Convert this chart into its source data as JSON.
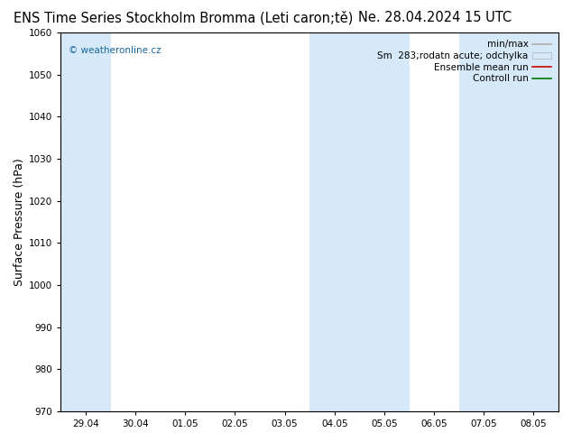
{
  "title_left": "ENS Time Series Stockholm Bromma (Leti caron;tě)",
  "title_right": "Ne. 28.04.2024 15 UTC",
  "ylabel": "Surface Pressure (hPa)",
  "ylim": [
    970,
    1060
  ],
  "yticks": [
    970,
    980,
    990,
    1000,
    1010,
    1020,
    1030,
    1040,
    1050,
    1060
  ],
  "xtick_labels": [
    "29.04",
    "30.04",
    "01.05",
    "02.05",
    "03.05",
    "04.05",
    "05.05",
    "06.05",
    "07.05",
    "08.05"
  ],
  "background_color": "#ffffff",
  "plot_bg_color": "#ffffff",
  "shade_color": "#d6e9f8",
  "shaded_bands_data": [
    {
      "start": 0,
      "end": 1
    },
    {
      "start": 5,
      "end": 7
    },
    {
      "start": 8,
      "end": 10
    }
  ],
  "watermark": "© weatheronline.cz",
  "watermark_color": "#1a6699",
  "title_fontsize": 10.5,
  "tick_fontsize": 7.5,
  "ylabel_fontsize": 9,
  "legend_fontsize": 7.5
}
